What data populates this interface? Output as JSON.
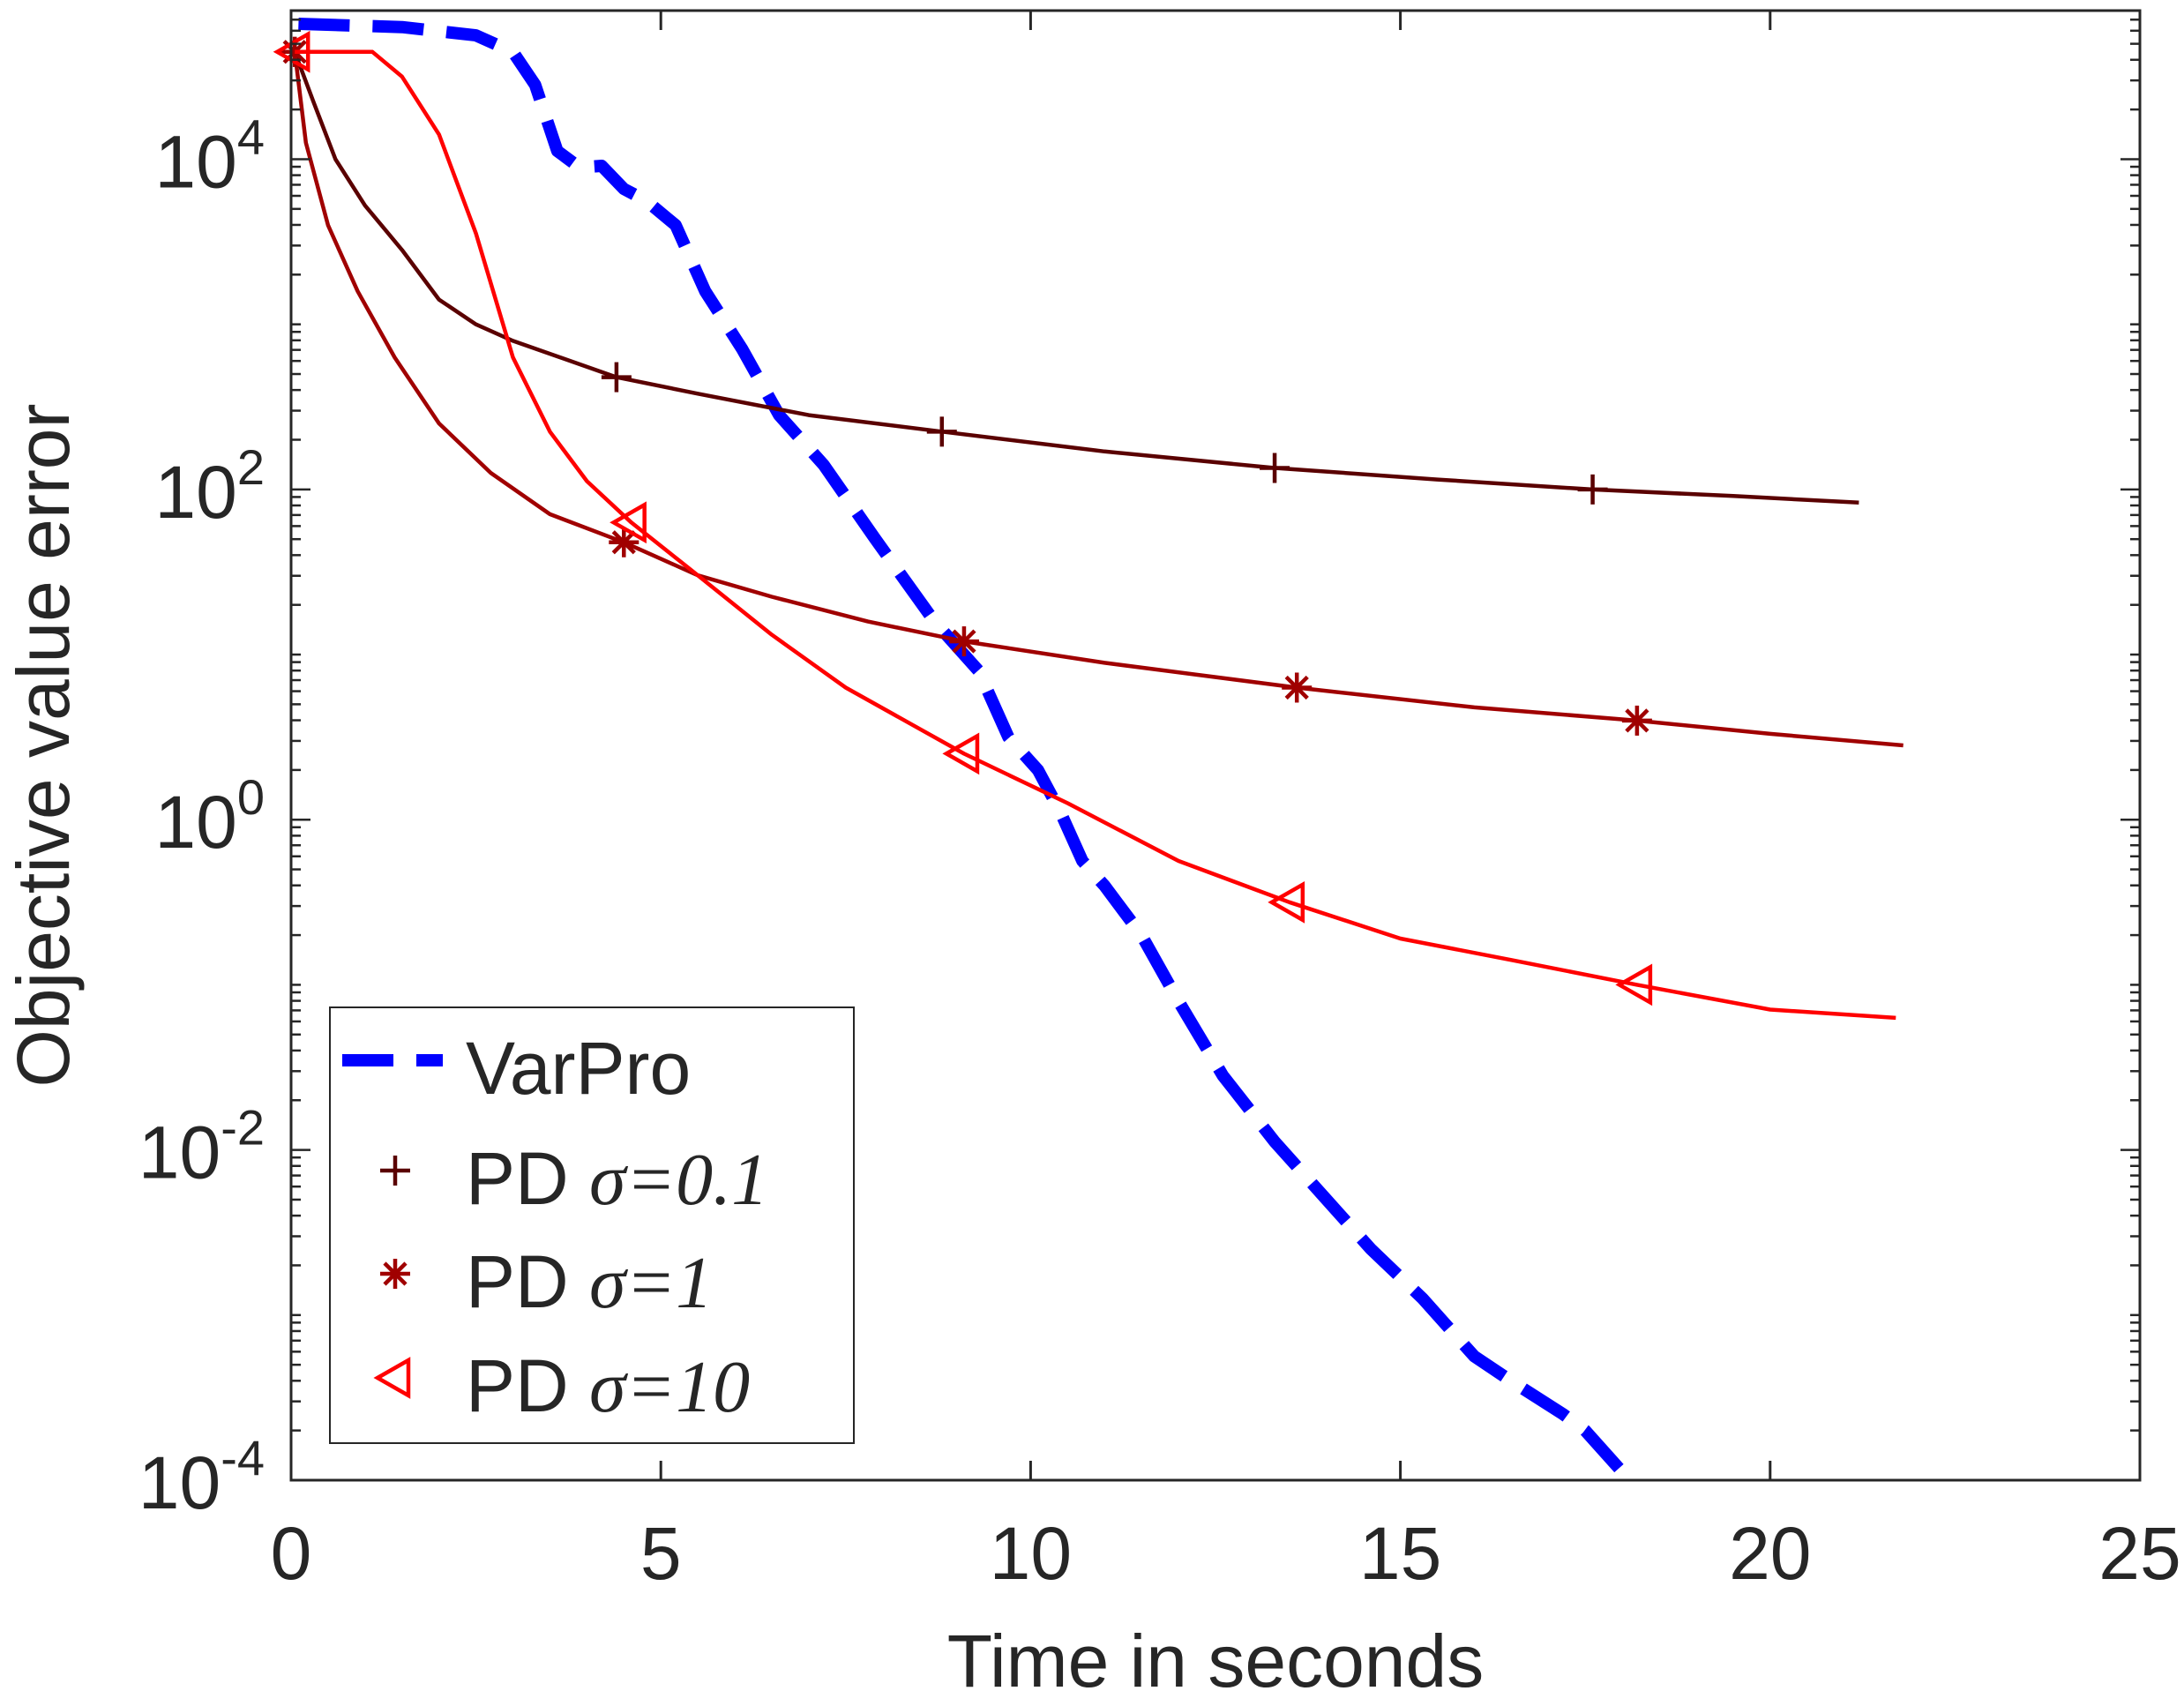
{
  "chart_data": {
    "type": "line",
    "title": "",
    "xlabel": "Time in seconds",
    "ylabel": "Objective value error",
    "xlim": [
      0,
      25
    ],
    "ylim_log10": [
      -4,
      4.9
    ],
    "yscale": "log",
    "grid": false,
    "legend_position": "bottom-left",
    "x_ticks": [
      0,
      5,
      10,
      15,
      20,
      25
    ],
    "x_tick_labels": [
      "0",
      "5",
      "10",
      "15",
      "20",
      "25"
    ],
    "y_ticks_log10": [
      4,
      2,
      0,
      -2,
      -4
    ],
    "y_tick_labels": [
      {
        "base": "10",
        "exp": "4"
      },
      {
        "base": "10",
        "exp": "2"
      },
      {
        "base": "10",
        "exp": "0"
      },
      {
        "base": "10",
        "exp": "-2"
      },
      {
        "base": "10",
        "exp": "-4"
      }
    ],
    "series": [
      {
        "name": "VarPro",
        "legend_label": "VarPro",
        "legend_sigma": "",
        "color": "#0000ff",
        "style": "dashed",
        "marker": "none",
        "points": [
          [
            0.1,
            4.82
          ],
          [
            1.5,
            4.8
          ],
          [
            2.5,
            4.75
          ],
          [
            3.0,
            4.65
          ],
          [
            3.3,
            4.45
          ],
          [
            3.6,
            4.05
          ],
          [
            3.9,
            3.95
          ],
          [
            4.2,
            3.96
          ],
          [
            4.5,
            3.82
          ],
          [
            4.8,
            3.75
          ],
          [
            5.2,
            3.6
          ],
          [
            5.6,
            3.2
          ],
          [
            6.1,
            2.85
          ],
          [
            6.6,
            2.45
          ],
          [
            7.2,
            2.15
          ],
          [
            7.9,
            1.7
          ],
          [
            8.7,
            1.2
          ],
          [
            9.3,
            0.9
          ],
          [
            9.7,
            0.5
          ],
          [
            10.1,
            0.3
          ],
          [
            10.4,
            0.05
          ],
          [
            10.7,
            -0.25
          ],
          [
            11.0,
            -0.4
          ],
          [
            11.5,
            -0.7
          ],
          [
            12.0,
            -1.1
          ],
          [
            12.6,
            -1.55
          ],
          [
            13.3,
            -1.95
          ],
          [
            14.0,
            -2.3
          ],
          [
            14.6,
            -2.6
          ],
          [
            15.3,
            -2.9
          ],
          [
            16.0,
            -3.25
          ],
          [
            16.5,
            -3.4
          ],
          [
            17.2,
            -3.6
          ],
          [
            17.5,
            -3.7
          ],
          [
            18.0,
            -3.95
          ]
        ]
      },
      {
        "name": "PD sigma=0.1",
        "legend_label": "PD ",
        "legend_sigma": "σ=0.1",
        "color": "#5a0000",
        "style": "solid",
        "marker": "plus",
        "points": [
          [
            0.05,
            4.65
          ],
          [
            0.3,
            4.35
          ],
          [
            0.6,
            4.0
          ],
          [
            1.0,
            3.72
          ],
          [
            1.5,
            3.45
          ],
          [
            2.0,
            3.15
          ],
          [
            2.5,
            3.0
          ],
          [
            3.0,
            2.9
          ],
          [
            4.4,
            2.68
          ],
          [
            5.5,
            2.58
          ],
          [
            7.0,
            2.45
          ],
          [
            8.8,
            2.35
          ],
          [
            11.0,
            2.23
          ],
          [
            13.3,
            2.13
          ],
          [
            15.5,
            2.06
          ],
          [
            17.6,
            2.0
          ],
          [
            19.5,
            1.96
          ],
          [
            21.2,
            1.92
          ]
        ],
        "markers": [
          [
            0.05,
            4.65
          ],
          [
            4.4,
            2.68
          ],
          [
            8.8,
            2.35
          ],
          [
            13.3,
            2.13
          ],
          [
            17.6,
            2.0
          ]
        ]
      },
      {
        "name": "PD sigma=1",
        "legend_label": "PD ",
        "legend_sigma": "σ=1",
        "color": "#a00000",
        "style": "solid",
        "marker": "asterisk",
        "points": [
          [
            0.05,
            4.65
          ],
          [
            0.2,
            4.1
          ],
          [
            0.5,
            3.6
          ],
          [
            0.9,
            3.2
          ],
          [
            1.4,
            2.8
          ],
          [
            2.0,
            2.4
          ],
          [
            2.7,
            2.1
          ],
          [
            3.5,
            1.85
          ],
          [
            4.5,
            1.68
          ],
          [
            5.5,
            1.48
          ],
          [
            6.5,
            1.35
          ],
          [
            7.8,
            1.2
          ],
          [
            9.1,
            1.08
          ],
          [
            11.0,
            0.95
          ],
          [
            13.6,
            0.8
          ],
          [
            16.0,
            0.68
          ],
          [
            18.2,
            0.6
          ],
          [
            20.0,
            0.52
          ],
          [
            21.8,
            0.45
          ]
        ],
        "markers": [
          [
            0.05,
            4.65
          ],
          [
            4.5,
            1.68
          ],
          [
            9.1,
            1.08
          ],
          [
            13.6,
            0.8
          ],
          [
            18.2,
            0.6
          ]
        ]
      },
      {
        "name": "PD sigma=10",
        "legend_label": "PD ",
        "legend_sigma": "σ=10",
        "color": "#ff0000",
        "style": "solid",
        "marker": "triangle-left",
        "points": [
          [
            0.05,
            4.65
          ],
          [
            1.1,
            4.65
          ],
          [
            1.5,
            4.5
          ],
          [
            2.0,
            4.15
          ],
          [
            2.5,
            3.55
          ],
          [
            3.0,
            2.8
          ],
          [
            3.5,
            2.35
          ],
          [
            4.0,
            2.05
          ],
          [
            4.6,
            1.8
          ],
          [
            5.5,
            1.48
          ],
          [
            6.5,
            1.12
          ],
          [
            7.5,
            0.8
          ],
          [
            8.5,
            0.55
          ],
          [
            9.1,
            0.4
          ],
          [
            10.5,
            0.1
          ],
          [
            12.0,
            -0.25
          ],
          [
            13.5,
            -0.5
          ],
          [
            15.0,
            -0.72
          ],
          [
            16.5,
            -0.85
          ],
          [
            18.2,
            -1.0
          ],
          [
            20.0,
            -1.15
          ],
          [
            21.7,
            -1.2
          ]
        ],
        "markers": [
          [
            0.05,
            4.65
          ],
          [
            4.6,
            1.8
          ],
          [
            9.1,
            0.4
          ],
          [
            13.5,
            -0.5
          ],
          [
            18.2,
            -1.0
          ]
        ]
      }
    ]
  }
}
